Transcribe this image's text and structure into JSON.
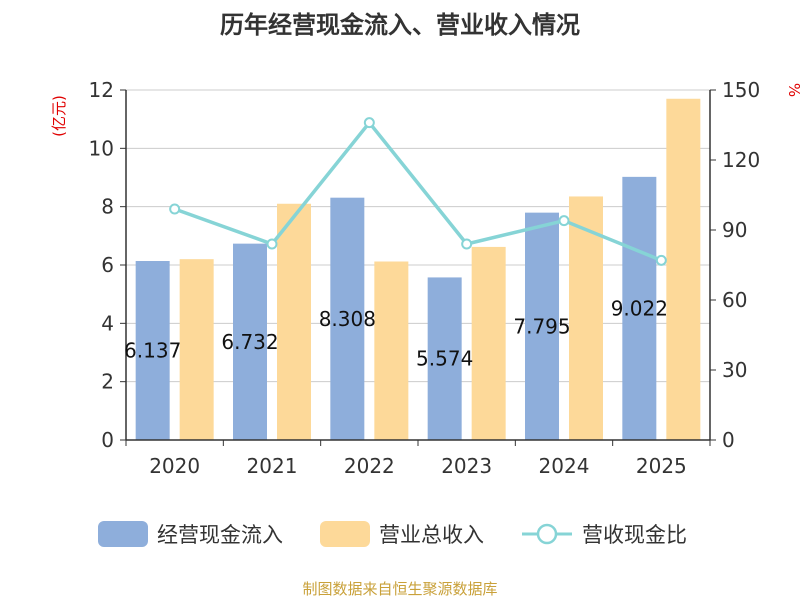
{
  "chart_data": {
    "type": "bar",
    "title": "历年经营现金流入、营业收入情况",
    "categories": [
      "2020",
      "2021",
      "2022",
      "2023",
      "2024",
      "2025"
    ],
    "series": [
      {
        "name": "经营现金流入",
        "axis": "left",
        "color": "#8eaedb",
        "values": [
          6.137,
          6.732,
          8.308,
          5.574,
          7.795,
          9.022
        ],
        "labels": [
          "6.137",
          "6.732",
          "8.308",
          "5.574",
          "7.795",
          "9.022"
        ]
      },
      {
        "name": "营业总收入",
        "axis": "left",
        "color": "#fdd999",
        "values": [
          6.2,
          8.1,
          6.12,
          6.62,
          8.35,
          11.7
        ]
      },
      {
        "name": "营收现金比",
        "axis": "right",
        "type": "line",
        "color": "#86d4d6",
        "values": [
          99,
          84,
          136,
          84,
          94,
          77
        ]
      }
    ],
    "y_left": {
      "label": "(亿元)",
      "range": [
        0,
        12
      ],
      "ticks": [
        "0",
        "2",
        "4",
        "6",
        "8",
        "10",
        "12"
      ]
    },
    "y_right": {
      "label": "%",
      "range": [
        0,
        150
      ],
      "ticks": [
        "0",
        "30",
        "60",
        "90",
        "120",
        "150"
      ]
    },
    "grid": true,
    "legend_position": "bottom",
    "source": "制图数据来自恒生聚源数据库",
    "colors": {
      "title": "#333333",
      "axis_label": "#e00000",
      "source": "#c9a13a",
      "grid": "#cccccc",
      "axis": "#333333"
    }
  }
}
